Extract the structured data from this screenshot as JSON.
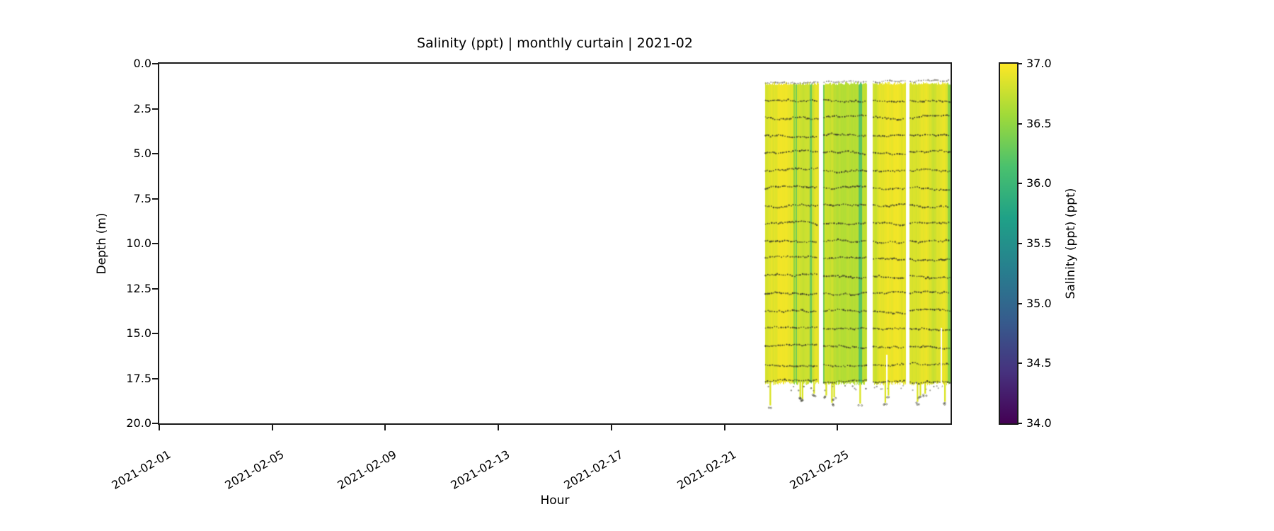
{
  "chart_data": {
    "type": "heatmap",
    "title": "Salinity (ppt) | monthly curtain | 2021-02",
    "xlabel": "Hour",
    "ylabel": "Depth (m)",
    "x_axis": {
      "start": "2021-02-01",
      "end": "2021-03-01",
      "span_days": 28,
      "tick_days": [
        0,
        4,
        8,
        12,
        16,
        20,
        24
      ],
      "tick_labels": [
        "2021-02-01",
        "2021-02-05",
        "2021-02-09",
        "2021-02-13",
        "2021-02-17",
        "2021-02-21",
        "2021-02-25"
      ]
    },
    "y_axis": {
      "min": 0,
      "max": 20,
      "inverted": true,
      "tick_values": [
        0,
        2.5,
        5,
        7.5,
        10,
        12.5,
        15,
        17.5,
        20
      ],
      "tick_labels": [
        "0.0",
        "2.5",
        "5.0",
        "7.5",
        "10.0",
        "12.5",
        "15.0",
        "17.5",
        "20.0"
      ]
    },
    "colorbar": {
      "label": "Salinity (ppt) (ppt)",
      "min": 34.0,
      "max": 37.0,
      "tick_labels_top_to_bottom": [
        "37.0",
        "36.5",
        "36.0",
        "35.5",
        "35.0",
        "34.5",
        "34.0"
      ],
      "colormap": "viridis",
      "stops_bottom_to_top": [
        "#440154",
        "#46327e",
        "#365c8d",
        "#277f8e",
        "#1fa187",
        "#4ac16d",
        "#a0da39",
        "#fde725"
      ]
    },
    "data_coverage_note": "data only from ~2021-02-22 10:00 to 2021-02-28 24:00, depth ~1 m to ~17.8 m",
    "typical_salinity_ppt": 36.8,
    "value_range_displayed_ppt": [
      36.4,
      37.0
    ],
    "bands_day_ranges": [
      {
        "start_day": 21.43,
        "end_day": 23.33
      },
      {
        "start_day": 23.5,
        "end_day": 25.05
      },
      {
        "start_day": 25.25,
        "end_day": 26.42
      },
      {
        "start_day": 26.55,
        "end_day": 28.0
      }
    ],
    "scatter_row_depths_m": [
      1.03,
      2.01,
      2.99,
      3.97,
      4.95,
      5.93,
      6.91,
      7.89,
      8.87,
      9.85,
      10.83,
      11.81,
      12.79,
      13.77,
      14.75,
      15.73,
      16.71,
      17.69
    ],
    "band_depth_top_m": 1.13,
    "band_depth_bottom_m": 17.78,
    "bottom_streaks": [
      {
        "day": 21.62,
        "end_depth_m": 19.0
      },
      {
        "day": 22.68,
        "end_depth_m": 18.55
      },
      {
        "day": 22.76,
        "end_depth_m": 18.65
      },
      {
        "day": 23.17,
        "end_depth_m": 18.35
      },
      {
        "day": 23.6,
        "end_depth_m": 18.45
      },
      {
        "day": 23.8,
        "end_depth_m": 18.85
      },
      {
        "day": 23.88,
        "end_depth_m": 18.55
      },
      {
        "day": 24.8,
        "end_depth_m": 18.9
      },
      {
        "day": 25.69,
        "end_depth_m": 18.85
      },
      {
        "day": 25.8,
        "end_depth_m": 18.45
      },
      {
        "day": 26.83,
        "end_depth_m": 18.8
      },
      {
        "day": 26.93,
        "end_depth_m": 18.45
      },
      {
        "day": 27.1,
        "end_depth_m": 18.35
      },
      {
        "day": 27.8,
        "end_depth_m": 18.8
      }
    ],
    "partial_white_gaps": [
      {
        "day": 25.74,
        "from_depth_m": 16.2
      },
      {
        "day": 27.67,
        "from_depth_m": 14.7
      }
    ],
    "colors": {
      "dot_dark": "#3a3c28",
      "dot_gray": "#84827a",
      "band_base": "#d8e21a",
      "axis_line": "#1a1a1a"
    }
  }
}
